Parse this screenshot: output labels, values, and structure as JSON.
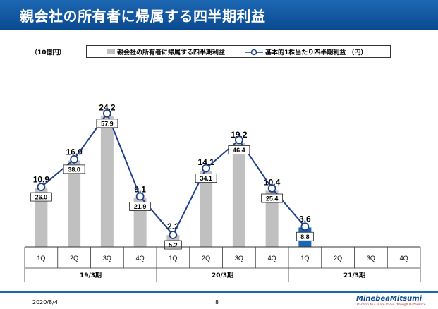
{
  "title": "親会社の所有者に帰属する四半期利益",
  "unit_label": "（10億円）",
  "legend": {
    "bar_label": "親会社の所有者に帰属する四半期利益",
    "line_label": "基本的1株当たり四半期利益 （円）"
  },
  "colors": {
    "title_bar": "#1c67b3",
    "bar": "#c0c0c0",
    "bar_latest": "#1c67b3",
    "line": "#1c3f8c"
  },
  "chart_data": {
    "type": "bar",
    "categories": [
      "1Q",
      "2Q",
      "3Q",
      "4Q",
      "1Q",
      "2Q",
      "3Q",
      "4Q",
      "1Q",
      "2Q",
      "3Q",
      "4Q"
    ],
    "groups": [
      {
        "label": "19/3期",
        "start": 0,
        "end": 3
      },
      {
        "label": "20/3期",
        "start": 4,
        "end": 7
      },
      {
        "label": "21/3期",
        "start": 8,
        "end": 11
      }
    ],
    "series": [
      {
        "name": "親会社の所有者に帰属する四半期利益",
        "kind": "bar",
        "axis": "left",
        "values": [
          10.9,
          16.0,
          24.2,
          9.1,
          2.2,
          14.1,
          19.2,
          10.4,
          3.6,
          null,
          null,
          null
        ],
        "labels": [
          "10.9",
          "16.0",
          "24.2",
          "9.1",
          "2.2",
          "14.1",
          "19.2",
          "10.4",
          "3.6",
          "",
          "",
          ""
        ]
      },
      {
        "name": "基本的1株当たり四半期利益 （円）",
        "kind": "line",
        "axis": "right",
        "values": [
          26.0,
          38.0,
          57.9,
          21.9,
          5.2,
          34.1,
          46.4,
          25.4,
          8.8,
          null,
          null,
          null
        ],
        "labels": [
          "26.0",
          "38.0",
          "57.9",
          "21.9",
          "5.2",
          "34.1",
          "46.4",
          "25.4",
          "8.8",
          "",
          "",
          ""
        ]
      }
    ],
    "ylim_left": [
      0,
      32
    ],
    "ylim_right": [
      0,
      75
    ],
    "highlight_index": 8
  },
  "footer": {
    "date": "2020/8/4",
    "page": "8",
    "brand": "MinebeaMitsumi",
    "tagline": "Passion to Create Value through Difference"
  }
}
